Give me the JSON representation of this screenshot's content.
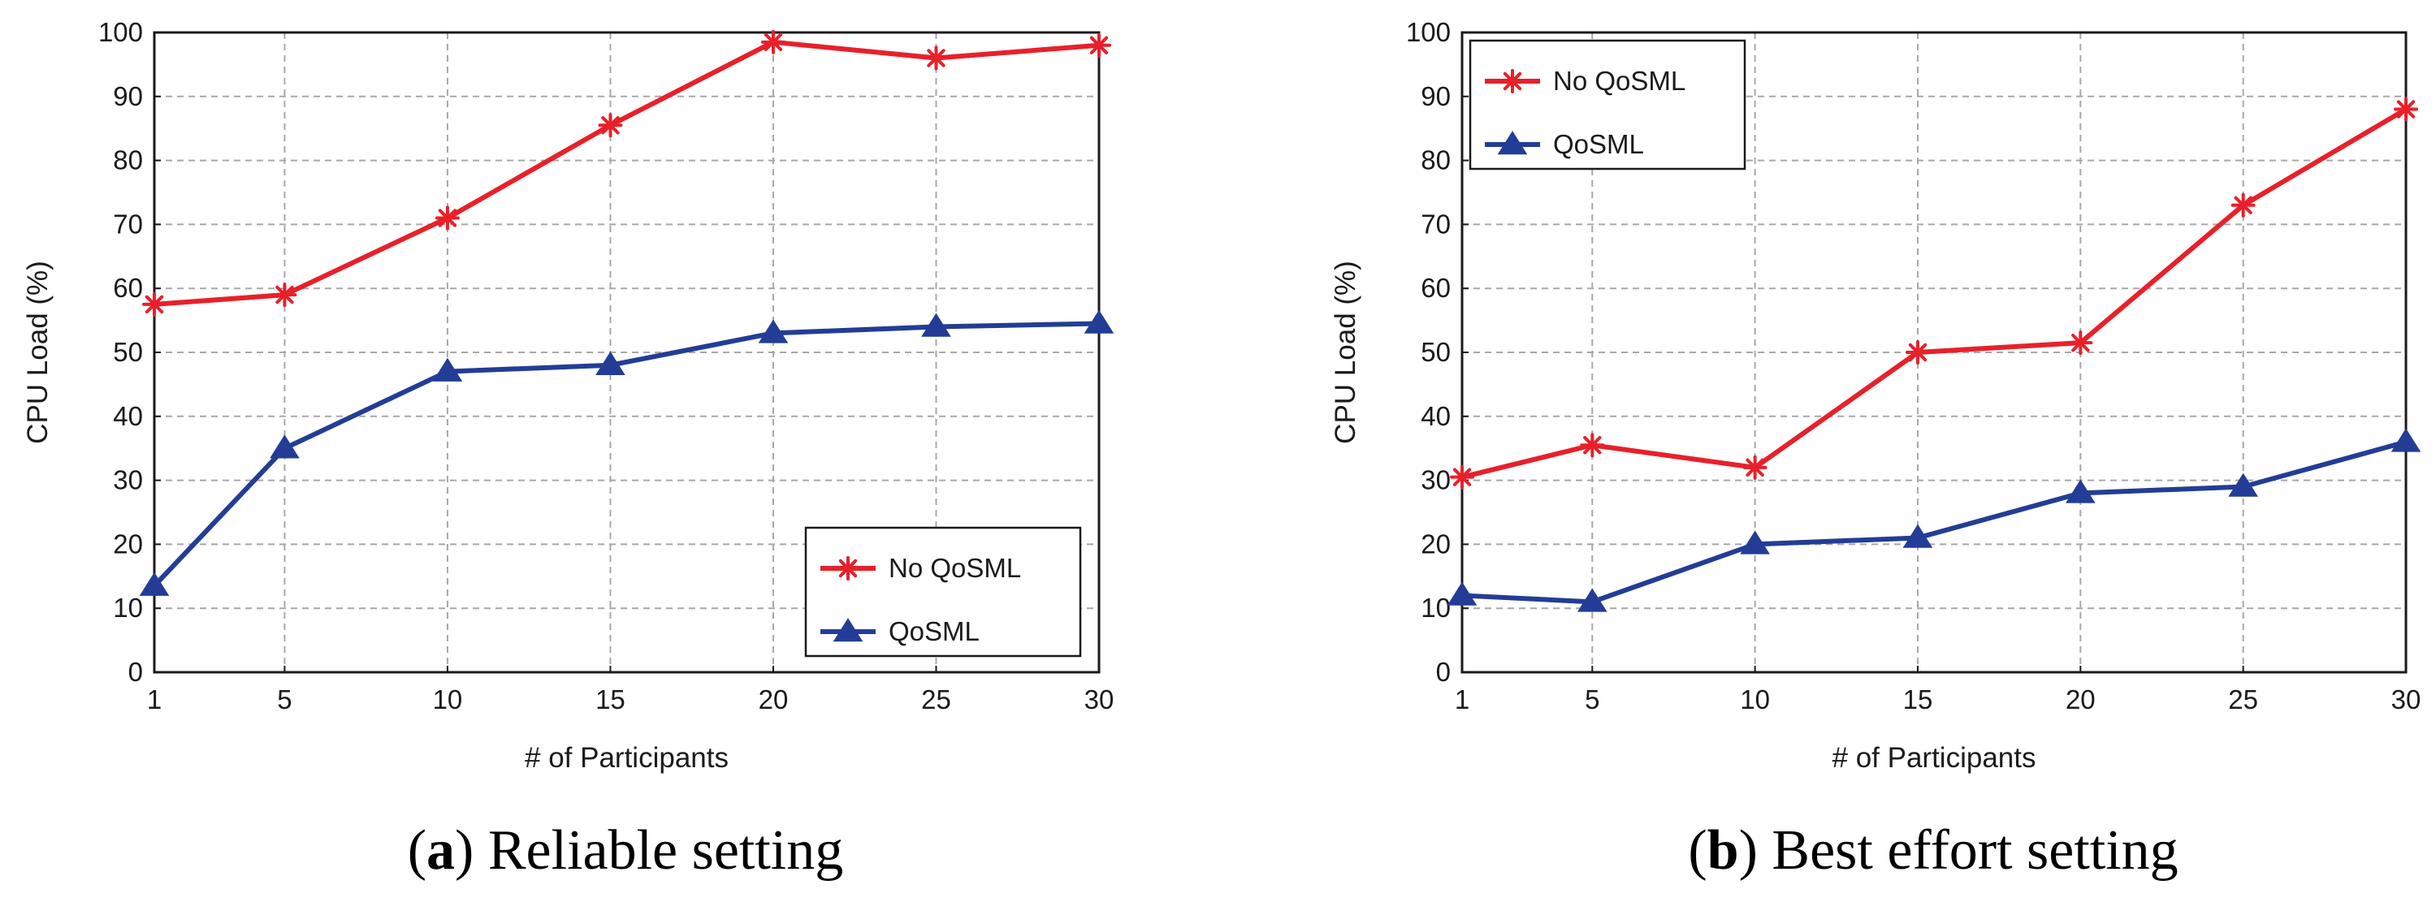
{
  "chart_data": [
    {
      "type": "line",
      "title": "",
      "caption_letter": "a",
      "caption_text": "Reliable setting",
      "xlabel": "#  of Participants",
      "ylabel": "CPU Load   (%)",
      "x": [
        1,
        5,
        10,
        15,
        20,
        25,
        30
      ],
      "x_ticks": [
        "1",
        "5",
        "10",
        "15",
        "20",
        "25",
        "30"
      ],
      "ylim": [
        0,
        100
      ],
      "y_ticks": [
        "0",
        "10",
        "20",
        "30",
        "40",
        "50",
        "60",
        "70",
        "80",
        "90",
        "100"
      ],
      "grid": true,
      "legend_position": "lower-right",
      "series": [
        {
          "name": "No QoSML",
          "color": "#e8202a",
          "marker": "asterisk",
          "values": [
            57.5,
            59,
            71,
            85.5,
            98.5,
            96,
            98
          ]
        },
        {
          "name": "QoSML",
          "color": "#233d96",
          "marker": "triangle",
          "values": [
            13.5,
            35,
            47,
            48,
            53,
            54,
            54.5
          ]
        }
      ]
    },
    {
      "type": "line",
      "title": "",
      "caption_letter": "b",
      "caption_text": "Best effort setting",
      "xlabel": "#  of Participants",
      "ylabel": "CPU Load   (%)",
      "x": [
        1,
        5,
        10,
        15,
        20,
        25,
        30
      ],
      "x_ticks": [
        "1",
        "5",
        "10",
        "15",
        "20",
        "25",
        "30"
      ],
      "ylim": [
        0,
        100
      ],
      "y_ticks": [
        "0",
        "10",
        "20",
        "30",
        "40",
        "50",
        "60",
        "70",
        "80",
        "90",
        "100"
      ],
      "grid": true,
      "legend_position": "upper-left",
      "series": [
        {
          "name": "No QoSML",
          "color": "#e8202a",
          "marker": "asterisk",
          "values": [
            30.5,
            35.5,
            32,
            50,
            51.5,
            73,
            88
          ]
        },
        {
          "name": "QoSML",
          "color": "#233d96",
          "marker": "triangle",
          "values": [
            12,
            11,
            20,
            21,
            28,
            29,
            36
          ]
        }
      ]
    }
  ]
}
